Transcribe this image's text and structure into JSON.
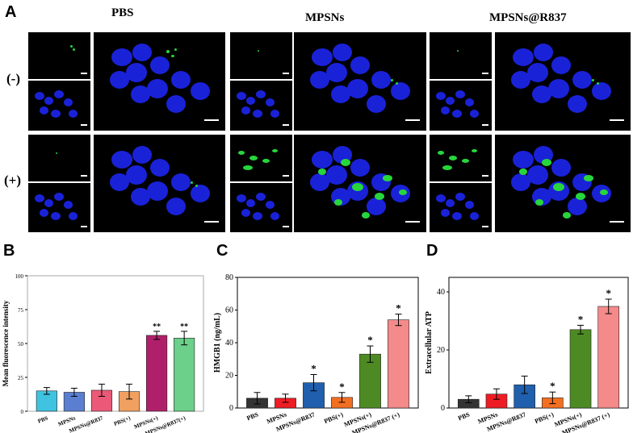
{
  "figure": {
    "panel_a": {
      "letter": "A",
      "columns": [
        "PBS",
        "MPSNs",
        "MPSNs@R837"
      ],
      "rows": [
        "(-)",
        "(+)"
      ]
    },
    "panel_b_letter": "B",
    "panel_c_letter": "C",
    "panel_d_letter": "D"
  },
  "colors": {
    "nucleus": "#1a22d8",
    "signal": "#27d63c",
    "background": "#000000"
  },
  "chart_data": [
    {
      "id": "B",
      "type": "bar",
      "categories": [
        "PBS",
        "MPSNs",
        "MPSNs@R837",
        "PBS(+)",
        "MPSNs(+)",
        "MPSNs@R837(+)"
      ],
      "values": [
        15,
        14,
        15.5,
        14.5,
        56,
        54
      ],
      "errors": [
        2.5,
        3,
        4.5,
        5.5,
        3,
        5
      ],
      "significance": [
        "",
        "",
        "",
        "",
        "**",
        "**"
      ],
      "colors": [
        "#3fc3e0",
        "#5b7fd0",
        "#ea5a78",
        "#f0a060",
        "#b0206a",
        "#6ccf8a"
      ],
      "ylabel": "Mean fluorescence intensity",
      "ylim": [
        0,
        100
      ],
      "yticks": [
        0,
        25,
        50,
        75,
        100
      ]
    },
    {
      "id": "C",
      "type": "bar",
      "categories": [
        "PBS",
        "MPSNs",
        "MPSNs@R837",
        "PBS(+)",
        "MPSNs(+)",
        "MPSNs@R837 (+)"
      ],
      "values": [
        6,
        6,
        15.5,
        6.5,
        33,
        54
      ],
      "errors": [
        3.5,
        2.5,
        5,
        3,
        5,
        3.5
      ],
      "significance": [
        "",
        "",
        "*",
        "*",
        "*",
        "*"
      ],
      "colors": [
        "#333333",
        "#ee1c24",
        "#1f5fad",
        "#f36f21",
        "#4e8a24",
        "#f48a8a"
      ],
      "ylabel": "HMGB1 (ng/mL)",
      "ylim": [
        0,
        80
      ],
      "yticks": [
        0,
        20,
        40,
        60,
        80
      ]
    },
    {
      "id": "D",
      "type": "bar",
      "categories": [
        "PBS",
        "MPSNs",
        "MPSNs@R837",
        "PBS(+)",
        "MPSNs(+)",
        "MPSNs@R837 (+)"
      ],
      "values": [
        3,
        4.8,
        8,
        3.5,
        27,
        35
      ],
      "errors": [
        1.2,
        1.8,
        3,
        2,
        1.5,
        2.5
      ],
      "significance": [
        "",
        "",
        "",
        "*",
        "*",
        "*"
      ],
      "colors": [
        "#333333",
        "#ee1c24",
        "#1f5fad",
        "#f36f21",
        "#4e8a24",
        "#f48a8a"
      ],
      "ylabel": "Extracellular ATP",
      "ylim": [
        0,
        45
      ],
      "yticks": [
        0,
        20,
        40
      ]
    }
  ]
}
